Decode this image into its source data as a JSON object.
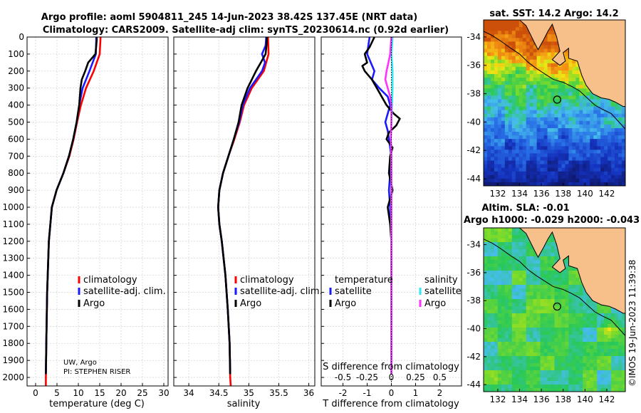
{
  "header": {
    "title_line1": "Argo profile: aoml 5904811_245 14-Jun-2023 38.42S 137.45E (NRT data)",
    "title_line2": "Climatology: CARS2009. Satellite-adj clim: synTS_20230614.nc (0.92d earlier)"
  },
  "colors": {
    "climatology": "#ff0000",
    "satellite_adj": "#1a1aff",
    "argo": "#000000",
    "sat_salinity": "#33e6f0",
    "argo_salinity": "#ff33ff",
    "land": "#f7c08a"
  },
  "chart_data": [
    {
      "id": "temperature",
      "type": "line",
      "xlabel": "temperature (deg C)",
      "ylabel": "",
      "xlim": [
        -2,
        31
      ],
      "xticks": [
        0,
        5,
        10,
        15,
        20,
        25,
        30
      ],
      "ylim": [
        0,
        2050
      ],
      "yticks": [
        0,
        100,
        200,
        300,
        400,
        500,
        600,
        700,
        800,
        900,
        1000,
        1100,
        1200,
        1300,
        1400,
        1500,
        1600,
        1700,
        1800,
        1900,
        2000
      ],
      "annotation": [
        "UW, Argo",
        "PI: STEPHEN RISER"
      ],
      "legend": [
        "climatology",
        "satellite-adj. clim.",
        "Argo"
      ],
      "series": [
        {
          "name": "climatology",
          "color": "#ff0000",
          "y": [
            0,
            100,
            200,
            300,
            400,
            500,
            600,
            700,
            800,
            900,
            1000,
            1200,
            1500,
            1800,
            2000,
            2050
          ],
          "x": [
            15.2,
            15.0,
            13.6,
            11.8,
            10.6,
            9.7,
            8.9,
            7.9,
            6.5,
            4.9,
            3.8,
            3.1,
            2.7,
            2.5,
            2.4,
            2.4
          ]
        },
        {
          "name": "satellite-adj. clim.",
          "color": "#1a1aff",
          "y": [
            0,
            100,
            200,
            300,
            400,
            500,
            600,
            700,
            800,
            900,
            1000,
            1200,
            1500,
            1800,
            1980
          ],
          "x": [
            14.2,
            14.1,
            12.6,
            11.0,
            10.2,
            9.6,
            8.8,
            7.8,
            6.5,
            4.9,
            3.8,
            3.1,
            2.7,
            2.5,
            2.4
          ]
        },
        {
          "name": "Argo",
          "color": "#000000",
          "y": [
            0,
            20,
            100,
            150,
            200,
            250,
            300,
            400,
            500,
            600,
            700,
            800,
            900,
            1000,
            1200,
            1500,
            1800,
            1980
          ],
          "x": [
            14.3,
            14.3,
            14.0,
            12.3,
            11.6,
            10.8,
            10.5,
            10.2,
            9.6,
            8.8,
            7.8,
            6.5,
            4.9,
            3.8,
            3.1,
            2.7,
            2.5,
            2.4
          ]
        }
      ]
    },
    {
      "id": "salinity",
      "type": "line",
      "xlabel": "salinity",
      "ylabel": "",
      "xlim": [
        33.75,
        36.1
      ],
      "xticks": [
        34,
        34.5,
        35,
        35.5,
        36
      ],
      "xtick_labels": [
        "34",
        "34.5",
        "35",
        "35.5",
        "36"
      ],
      "ylim": [
        0,
        2050
      ],
      "legend": [
        "climatology",
        "satellite-adj. clim.",
        "Argo"
      ],
      "series": [
        {
          "name": "climatology",
          "color": "#ff0000",
          "y": [
            0,
            100,
            200,
            300,
            400,
            500,
            600,
            700,
            800,
            900,
            1000,
            1100,
            1200,
            1400,
            1600,
            1800,
            2000,
            2050
          ],
          "x": [
            35.32,
            35.33,
            35.25,
            35.05,
            34.92,
            34.85,
            34.76,
            34.66,
            34.57,
            34.51,
            34.49,
            34.51,
            34.55,
            34.61,
            34.65,
            34.68,
            34.69,
            34.7
          ]
        },
        {
          "name": "satellite-adj. clim.",
          "color": "#1a1aff",
          "y": [
            0,
            50,
            100,
            150,
            200,
            300,
            400,
            500,
            600,
            700,
            800,
            900,
            1000,
            1100,
            1200,
            1400,
            1600,
            1800,
            1980
          ],
          "x": [
            35.29,
            35.28,
            35.22,
            35.27,
            35.22,
            35.02,
            34.9,
            34.84,
            34.75,
            34.66,
            34.57,
            34.51,
            34.49,
            34.51,
            34.55,
            34.61,
            34.65,
            34.68,
            34.69
          ]
        },
        {
          "name": "Argo",
          "color": "#000000",
          "y": [
            0,
            30,
            100,
            150,
            200,
            250,
            300,
            400,
            500,
            600,
            700,
            800,
            900,
            1000,
            1100,
            1200,
            1400,
            1600,
            1800,
            1980
          ],
          "x": [
            35.3,
            35.3,
            35.28,
            35.2,
            35.12,
            35.05,
            34.98,
            34.88,
            34.83,
            34.75,
            34.66,
            34.57,
            34.51,
            34.49,
            34.51,
            34.55,
            34.61,
            34.65,
            34.68,
            34.69
          ]
        }
      ]
    },
    {
      "id": "difference",
      "type": "line",
      "xlabel": "T difference from climatology",
      "x2label": "S difference from climatology",
      "xlim": [
        -2.9,
        2.9
      ],
      "xticks": [
        -2,
        -1,
        0,
        1,
        2
      ],
      "x2ticks": [
        -0.5,
        -0.25,
        0,
        0.25,
        0.5
      ],
      "x2tick_labels": [
        "-0.5",
        "-0.25",
        "0",
        "0.25",
        "0.5"
      ],
      "ylim": [
        0,
        2050
      ],
      "legend_temperature_title": "temperature",
      "legend_salinity_title": "salinity",
      "legend_temperature": [
        "satellite",
        "Argo"
      ],
      "legend_salinity": [
        "satellite",
        "Argo"
      ],
      "series": [
        {
          "name": "temperature satellite",
          "color": "#1a1aff",
          "y": [
            0,
            50,
            100,
            150,
            200,
            250,
            300,
            350,
            400,
            500,
            550,
            600,
            700,
            800,
            900,
            1000,
            1200,
            1500,
            1980
          ],
          "x": [
            -0.9,
            -0.95,
            -1.0,
            -0.85,
            -0.7,
            -0.8,
            -0.5,
            -0.15,
            -0.05,
            -0.25,
            -0.15,
            -0.1,
            0.0,
            -0.05,
            -0.1,
            -0.05,
            0.0,
            0.0,
            0.0
          ]
        },
        {
          "name": "temperature Argo",
          "color": "#000000",
          "y": [
            0,
            60,
            100,
            150,
            170,
            200,
            250,
            300,
            350,
            400,
            450,
            480,
            520,
            560,
            600,
            650,
            700,
            800,
            900,
            1000,
            1100,
            1200,
            1500,
            1980
          ],
          "x": [
            -0.7,
            -0.9,
            -1.1,
            -1.0,
            -1.2,
            -1.1,
            -0.8,
            -0.6,
            -0.4,
            -0.2,
            0.1,
            0.35,
            0.2,
            -0.1,
            -0.2,
            0.05,
            -0.05,
            -0.1,
            0.05,
            -0.15,
            -0.05,
            0.0,
            0.0,
            0.0
          ]
        },
        {
          "name": "salinity satellite",
          "color": "#33e6f0",
          "y": [
            0,
            50,
            100,
            150,
            200,
            300,
            400,
            500,
            600,
            700,
            800,
            1000,
            1500,
            1980
          ],
          "x": [
            0.05,
            0.03,
            0.0,
            0.03,
            0.05,
            0.05,
            0.03,
            0.0,
            -0.02,
            0.0,
            0.0,
            0.0,
            0.0,
            0.0
          ]
        },
        {
          "name": "salinity Argo",
          "color": "#ff33ff",
          "y": [
            0,
            100,
            150,
            200,
            250,
            300,
            350,
            400,
            500,
            600,
            700,
            800,
            1000,
            1500,
            1980
          ],
          "x": [
            0.0,
            -0.05,
            -0.12,
            -0.2,
            -0.25,
            -0.15,
            -0.05,
            0.0,
            0.0,
            -0.02,
            0.0,
            0.0,
            0.0,
            0.0,
            0.0
          ]
        }
      ]
    },
    {
      "id": "sst_map",
      "type": "heatmap",
      "title": "sat. SST: 14.2 Argo: 14.2",
      "xticks": [
        132,
        134,
        136,
        138,
        140,
        142
      ],
      "yticks": [
        -34,
        -36,
        -38,
        -40,
        -42,
        -44
      ],
      "xlim": [
        130.7,
        143.7
      ],
      "ylim": [
        -44.5,
        -32.8
      ],
      "marker": {
        "lon": 137.45,
        "lat": -38.42
      }
    },
    {
      "id": "sla_map",
      "type": "heatmap",
      "title": "Altim. SLA: -0.01",
      "subtitle": "Argo h1000: -0.029 h2000: -0.043",
      "xticks": [
        132,
        134,
        136,
        138,
        140,
        142
      ],
      "yticks": [
        -34,
        -36,
        -38,
        -40,
        -42,
        -44
      ],
      "xlim": [
        130.7,
        143.7
      ],
      "ylim": [
        -44.5,
        -32.8
      ],
      "marker": {
        "lon": 137.45,
        "lat": -38.42
      }
    }
  ],
  "side_label": "©IMOS 19-Jun-2023 11:39:38"
}
